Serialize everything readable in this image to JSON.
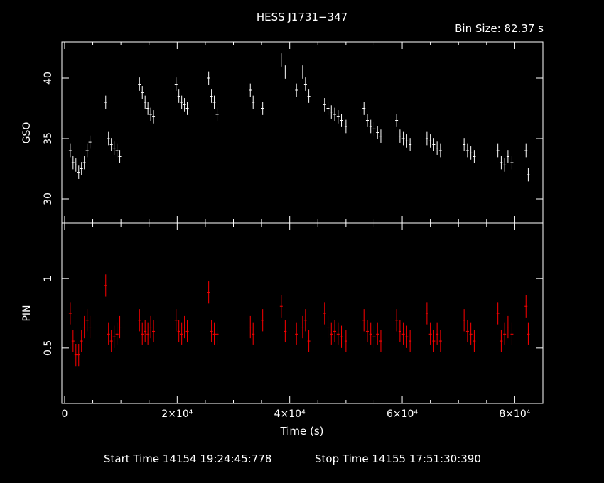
{
  "header": {
    "title": "HESS J1731−347",
    "bin_size": "Bin Size: 82.37 s"
  },
  "footer": {
    "start_time": "Start Time 14154 19:24:45:778",
    "stop_time": "Stop Time 14155 17:51:30:390"
  },
  "colors": {
    "background": "#000000",
    "gso": "#ffffff",
    "pin": "#ff0000",
    "axes": "#ffffff"
  },
  "chart_data": [
    {
      "type": "scatter",
      "panel": "top",
      "title": "HESS J1731−347",
      "ylabel": "GSO",
      "xlabel": "",
      "xlim": [
        -500,
        85000
      ],
      "ylim": [
        28,
        43
      ],
      "yticks": [
        30,
        35,
        40
      ],
      "ytick_labels": [
        "30",
        "35",
        "40"
      ],
      "error_bars": true,
      "series": [
        {
          "x": [
            1000,
            1500,
            2000,
            2500,
            3000,
            3500,
            4000,
            4500,
            7300,
            7800,
            8300,
            8800,
            9300,
            9800,
            13300,
            13800,
            14300,
            14800,
            15300,
            15800,
            19800,
            20300,
            20800,
            21300,
            21800,
            25600,
            26100,
            26600,
            27100,
            33000,
            33500,
            35200,
            38500,
            39200,
            41200,
            42300,
            42800,
            43400,
            46200,
            46800,
            47400,
            48000,
            48600,
            49200,
            50000,
            53200,
            53800,
            54400,
            55000,
            55600,
            56200,
            59000,
            59600,
            60200,
            60800,
            61400,
            64400,
            65000,
            65600,
            66200,
            66800,
            71000,
            71600,
            72200,
            72800,
            77000,
            77600,
            78200,
            78800,
            79500,
            82000,
            82400
          ],
          "y": [
            34.0,
            33.0,
            32.8,
            32.2,
            32.5,
            33.0,
            34.0,
            34.7,
            38.0,
            35.0,
            34.5,
            34.2,
            34.0,
            33.5,
            39.5,
            38.8,
            38.0,
            37.5,
            37.0,
            36.8,
            39.5,
            38.5,
            38.0,
            37.8,
            37.5,
            40.0,
            38.5,
            38.0,
            37.0,
            39.0,
            38.0,
            37.5,
            41.5,
            40.5,
            39.0,
            40.5,
            39.5,
            38.5,
            37.8,
            37.5,
            37.2,
            37.0,
            36.8,
            36.5,
            36.0,
            37.5,
            36.5,
            36.0,
            35.8,
            35.5,
            35.2,
            36.5,
            35.2,
            35.0,
            34.8,
            34.5,
            35.0,
            34.8,
            34.5,
            34.2,
            34.0,
            34.5,
            34.0,
            33.8,
            33.5,
            34.0,
            33.0,
            32.8,
            33.5,
            33.0,
            34.0,
            32.0
          ]
        }
      ]
    },
    {
      "type": "scatter",
      "panel": "bottom",
      "ylabel": "PIN",
      "xlabel": "Time (s)",
      "xlim": [
        -500,
        85000
      ],
      "ylim": [
        0.1,
        1.4
      ],
      "yticks": [
        0.5,
        1
      ],
      "ytick_labels": [
        "0.5",
        "1"
      ],
      "xticks": [
        0,
        20000,
        40000,
        60000,
        80000
      ],
      "xtick_labels": [
        "0",
        "2×10⁴",
        "4×10⁴",
        "6×10⁴",
        "8×10⁴"
      ],
      "error_bars": true,
      "series": [
        {
          "x": [
            1000,
            1500,
            2000,
            2500,
            3000,
            3500,
            4000,
            4500,
            7300,
            7800,
            8300,
            8800,
            9300,
            9800,
            13300,
            13800,
            14300,
            14800,
            15300,
            15800,
            19800,
            20300,
            20800,
            21300,
            21800,
            25600,
            26100,
            26600,
            27100,
            33000,
            33500,
            35200,
            38500,
            39200,
            41200,
            42300,
            42800,
            43400,
            46200,
            46800,
            47400,
            48000,
            48600,
            49200,
            50000,
            53200,
            53800,
            54400,
            55000,
            55600,
            56200,
            59000,
            59600,
            60200,
            60800,
            61400,
            64400,
            65000,
            65600,
            66200,
            66800,
            71000,
            71600,
            72200,
            72800,
            77000,
            77600,
            78200,
            78800,
            79500,
            82000,
            82400
          ],
          "y": [
            0.75,
            0.55,
            0.45,
            0.45,
            0.55,
            0.65,
            0.7,
            0.65,
            0.95,
            0.6,
            0.55,
            0.58,
            0.6,
            0.65,
            0.7,
            0.6,
            0.62,
            0.6,
            0.65,
            0.62,
            0.7,
            0.62,
            0.6,
            0.65,
            0.62,
            0.9,
            0.62,
            0.6,
            0.6,
            0.65,
            0.6,
            0.7,
            0.8,
            0.62,
            0.6,
            0.65,
            0.7,
            0.55,
            0.75,
            0.65,
            0.6,
            0.62,
            0.6,
            0.58,
            0.55,
            0.7,
            0.62,
            0.6,
            0.58,
            0.6,
            0.55,
            0.7,
            0.62,
            0.6,
            0.58,
            0.55,
            0.75,
            0.6,
            0.55,
            0.6,
            0.55,
            0.7,
            0.62,
            0.6,
            0.55,
            0.75,
            0.55,
            0.6,
            0.65,
            0.6,
            0.8,
            0.6
          ]
        }
      ]
    }
  ]
}
